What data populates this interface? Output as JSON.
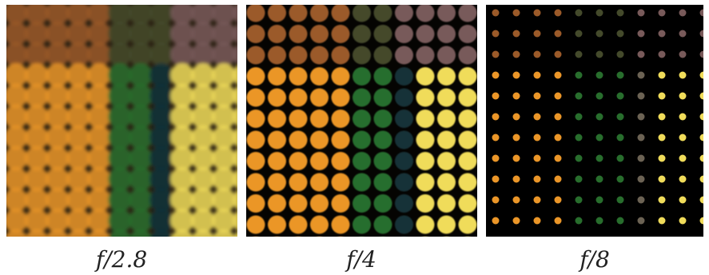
{
  "figure": {
    "panels": [
      {
        "caption": "f/2.8"
      },
      {
        "caption": "f/4"
      },
      {
        "caption": "f/8"
      }
    ]
  }
}
